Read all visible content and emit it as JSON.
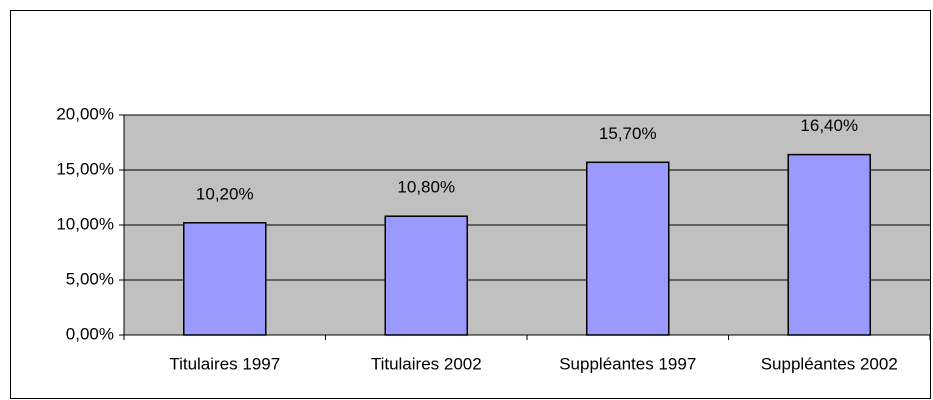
{
  "chart_data": {
    "type": "bar",
    "categories": [
      "Titulaires 1997",
      "Titulaires 2002",
      "Suppléantes 1997",
      "Suppléantes 2002"
    ],
    "values": [
      10.2,
      10.8,
      15.7,
      16.4
    ],
    "value_labels": [
      "10,20%",
      "10,80%",
      "15,70%",
      "16,40%"
    ],
    "color": "#9999ff",
    "ylim": [
      0,
      20
    ],
    "yticks": [
      {
        "value": 0,
        "label": "0,00%"
      },
      {
        "value": 5,
        "label": "5,00%"
      },
      {
        "value": 10,
        "label": "10,00%"
      },
      {
        "value": 15,
        "label": "15,00%"
      },
      {
        "value": 20,
        "label": "20,00%"
      }
    ],
    "grid": true
  }
}
